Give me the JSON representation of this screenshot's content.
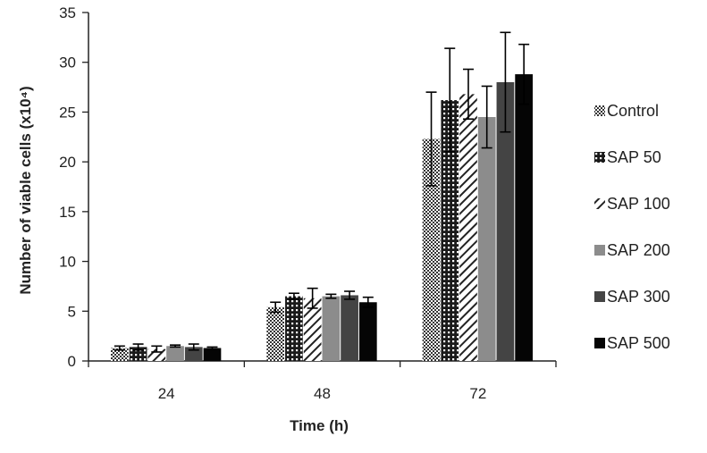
{
  "chart_data": {
    "type": "bar",
    "title": "",
    "xlabel": "Time (h)",
    "ylabel": "Number of viable cells (x10⁴)",
    "ylim": [
      0,
      35
    ],
    "yticks": [
      0,
      5,
      10,
      15,
      20,
      25,
      30,
      35
    ],
    "categories": [
      "24",
      "48",
      "72"
    ],
    "legend_position": "right",
    "grid": false,
    "series": [
      {
        "name": "Control",
        "pattern": "checker",
        "values": [
          1.3,
          5.4,
          22.3
        ],
        "errors": [
          0.2,
          0.5,
          4.7
        ]
      },
      {
        "name": "SAP 50",
        "pattern": "dots",
        "values": [
          1.4,
          6.5,
          26.2
        ],
        "errors": [
          0.3,
          0.3,
          5.2
        ]
      },
      {
        "name": "SAP 100",
        "pattern": "diagonal",
        "values": [
          1.2,
          6.3,
          26.8
        ],
        "errors": [
          0.3,
          1.0,
          2.5
        ]
      },
      {
        "name": "SAP 200",
        "pattern": "solid",
        "color": "#8c8c8c",
        "values": [
          1.5,
          6.5,
          24.5
        ],
        "errors": [
          0.1,
          0.2,
          3.1
        ]
      },
      {
        "name": "SAP 300",
        "pattern": "solid",
        "color": "#444444",
        "values": [
          1.4,
          6.6,
          28.0
        ],
        "errors": [
          0.3,
          0.4,
          5.0
        ]
      },
      {
        "name": "SAP 500",
        "pattern": "solid",
        "color": "#050505",
        "values": [
          1.3,
          5.9,
          28.8
        ],
        "errors": [
          0.1,
          0.5,
          3.0
        ]
      }
    ]
  }
}
